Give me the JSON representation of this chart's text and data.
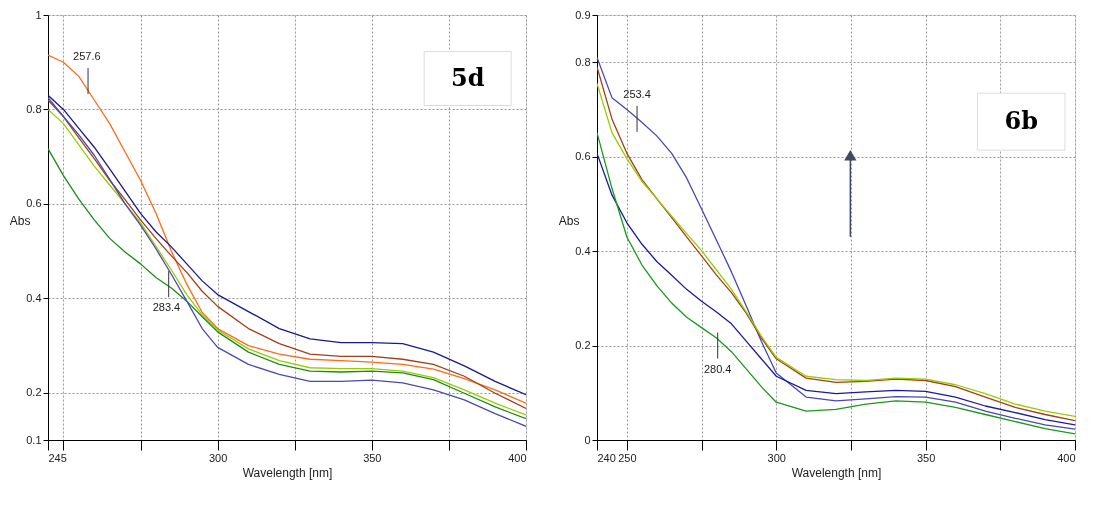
{
  "chart_data": [
    {
      "type": "line",
      "xlabel": "Wavelength [nm]",
      "ylabel": "Abs",
      "grid": true,
      "xlim": [
        245,
        400
      ],
      "ylim": [
        0.1,
        1
      ],
      "xticks": [
        245,
        {
          "value": 250,
          "label": null
        },
        {
          "value": 275,
          "label": null
        },
        300,
        {
          "value": 325,
          "label": null
        },
        350,
        {
          "value": 375,
          "label": null
        },
        400
      ],
      "yticks": [
        0.1,
        0.2,
        0.4,
        0.6,
        0.8,
        1
      ],
      "x": [
        245,
        250,
        255,
        260,
        265,
        270,
        275,
        280,
        285,
        290,
        295,
        300,
        310,
        320,
        330,
        340,
        350,
        360,
        370,
        380,
        390,
        400
      ],
      "series": [
        {
          "color": "#ff6a1a",
          "values": [
            0.915,
            0.9,
            0.87,
            0.82,
            0.77,
            0.71,
            0.65,
            0.58,
            0.5,
            0.43,
            0.37,
            0.336,
            0.3,
            0.282,
            0.271,
            0.268,
            0.265,
            0.26,
            0.25,
            0.23,
            0.206,
            0.178
          ]
        },
        {
          "color": "#1a1a8c",
          "values": [
            0.83,
            0.8,
            0.76,
            0.72,
            0.674,
            0.627,
            0.58,
            0.541,
            0.509,
            0.473,
            0.437,
            0.408,
            0.372,
            0.336,
            0.314,
            0.306,
            0.306,
            0.304,
            0.286,
            0.257,
            0.224,
            0.196
          ]
        },
        {
          "color": "#a0401a",
          "values": [
            0.82,
            0.785,
            0.74,
            0.696,
            0.65,
            0.609,
            0.566,
            0.527,
            0.49,
            0.455,
            0.415,
            0.383,
            0.336,
            0.304,
            0.282,
            0.277,
            0.277,
            0.271,
            0.26,
            0.235,
            0.199,
            0.167
          ]
        },
        {
          "color": "#99cc00",
          "values": [
            0.8,
            0.77,
            0.725,
            0.68,
            0.64,
            0.6,
            0.56,
            0.51,
            0.46,
            0.408,
            0.365,
            0.333,
            0.293,
            0.268,
            0.253,
            0.251,
            0.251,
            0.246,
            0.232,
            0.206,
            0.178,
            0.153
          ]
        },
        {
          "color": "#1a8c1a",
          "values": [
            0.717,
            0.66,
            0.61,
            0.566,
            0.527,
            0.498,
            0.473,
            0.444,
            0.422,
            0.394,
            0.361,
            0.329,
            0.286,
            0.26,
            0.246,
            0.244,
            0.246,
            0.242,
            0.228,
            0.199,
            0.17,
            0.145
          ]
        },
        {
          "color": "#4a4ab0",
          "values": [
            0.825,
            0.785,
            0.746,
            0.703,
            0.652,
            0.6,
            0.555,
            0.505,
            0.451,
            0.394,
            0.336,
            0.296,
            0.26,
            0.239,
            0.224,
            0.224,
            0.227,
            0.221,
            0.206,
            0.185,
            0.156,
            0.129
          ]
        }
      ],
      "annotations": [
        "5d",
        {
          "text": "257.6",
          "x": 257.6,
          "y": 0.86
        },
        {
          "text": "283.4",
          "x": 283.4,
          "y": 0.43
        }
      ]
    },
    {
      "type": "line",
      "xlabel": "Wavelength [nm]",
      "ylabel": "Abs",
      "grid": true,
      "xlim": [
        240,
        400
      ],
      "ylim": [
        0,
        0.9
      ],
      "xticks": [
        240,
        250,
        {
          "value": 275,
          "label": null
        },
        300,
        {
          "value": 325,
          "label": null
        },
        350,
        {
          "value": 375,
          "label": null
        },
        400
      ],
      "yticks": [
        0,
        0.2,
        0.4,
        0.6,
        0.8,
        0.9
      ],
      "x": [
        240,
        245,
        250,
        255,
        260,
        265,
        270,
        275,
        280,
        285,
        290,
        295,
        300,
        310,
        320,
        330,
        340,
        350,
        360,
        370,
        380,
        390,
        400
      ],
      "series": [
        {
          "color": "#4848b0",
          "values": [
            0.81,
            0.725,
            0.7,
            0.673,
            0.644,
            0.607,
            0.555,
            0.489,
            0.423,
            0.356,
            0.283,
            0.209,
            0.142,
            0.091,
            0.083,
            0.087,
            0.092,
            0.091,
            0.08,
            0.061,
            0.046,
            0.032,
            0.023
          ]
        },
        {
          "color": "#a0401a",
          "values": [
            0.79,
            0.68,
            0.607,
            0.552,
            0.511,
            0.471,
            0.43,
            0.39,
            0.349,
            0.312,
            0.268,
            0.216,
            0.172,
            0.131,
            0.122,
            0.124,
            0.129,
            0.126,
            0.113,
            0.091,
            0.069,
            0.054,
            0.041
          ]
        },
        {
          "color": "#99cc00",
          "values": [
            0.755,
            0.651,
            0.596,
            0.548,
            0.511,
            0.474,
            0.437,
            0.401,
            0.36,
            0.319,
            0.271,
            0.22,
            0.175,
            0.135,
            0.128,
            0.126,
            0.131,
            0.129,
            0.117,
            0.098,
            0.076,
            0.061,
            0.05
          ]
        },
        {
          "color": "#1a1aa0",
          "values": [
            0.607,
            0.519,
            0.46,
            0.415,
            0.378,
            0.349,
            0.319,
            0.294,
            0.271,
            0.246,
            0.209,
            0.172,
            0.135,
            0.105,
            0.098,
            0.102,
            0.105,
            0.103,
            0.091,
            0.072,
            0.058,
            0.043,
            0.032
          ]
        },
        {
          "color": "#1a9a1a",
          "values": [
            0.651,
            0.533,
            0.43,
            0.371,
            0.327,
            0.29,
            0.26,
            0.238,
            0.216,
            0.187,
            0.15,
            0.113,
            0.08,
            0.061,
            0.065,
            0.076,
            0.083,
            0.08,
            0.069,
            0.054,
            0.039,
            0.024,
            0.013
          ]
        }
      ],
      "annotations": [
        "6b",
        {
          "text": "253.4",
          "x": 253.4,
          "y": 0.68
        },
        {
          "text": "280.4",
          "x": 280.4,
          "y": 0.2
        }
      ]
    }
  ]
}
